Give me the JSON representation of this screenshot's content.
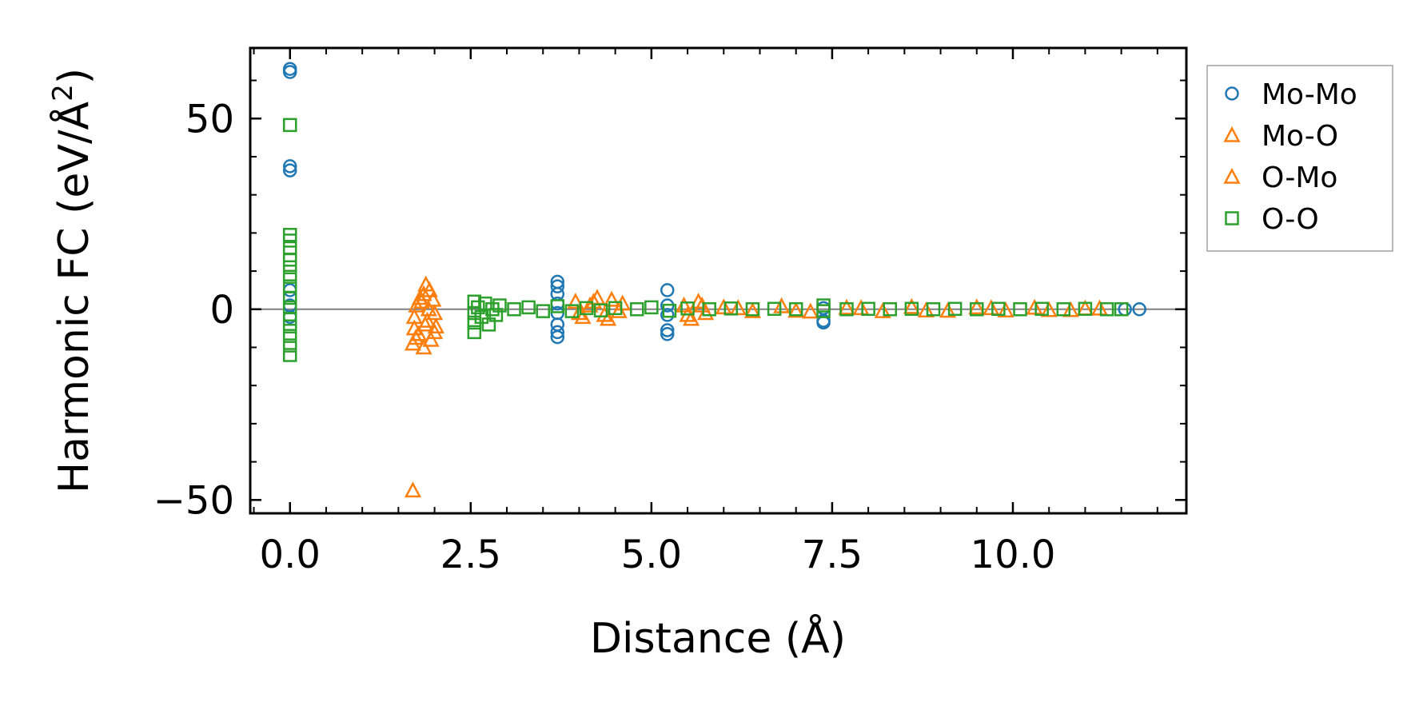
{
  "chart_data": {
    "type": "scatter",
    "xlabel": "Distance (Å)",
    "ylabel": "Harmonic FC (eV/Å²)",
    "ylabel_main": "Harmonic FC (eV/Å",
    "ylabel_sup": "2",
    "ylabel_end": ")",
    "xlim": [
      -0.55,
      12.4
    ],
    "ylim": [
      -53.5,
      68.5
    ],
    "xticks": [
      0.0,
      2.5,
      5.0,
      7.5,
      10.0
    ],
    "xtick_labels": [
      "0.0",
      "2.5",
      "5.0",
      "7.5",
      "10.0"
    ],
    "yticks": [
      -50,
      0,
      50
    ],
    "ytick_labels": [
      "−50",
      "0",
      "50"
    ],
    "zero_line": true,
    "grid": false,
    "legend_position": "outside-right-top",
    "series": [
      {
        "name": "Mo-Mo",
        "marker": "circle",
        "color": "#1f77b4",
        "points": [
          [
            0.0,
            63.0
          ],
          [
            0.0,
            62.2
          ],
          [
            0.0,
            37.5
          ],
          [
            0.0,
            36.4
          ],
          [
            0.0,
            5.0
          ],
          [
            0.0,
            1.0
          ],
          [
            0.0,
            -2.0
          ],
          [
            3.7,
            7.2
          ],
          [
            3.7,
            6.0
          ],
          [
            3.7,
            4.0
          ],
          [
            3.7,
            1.5
          ],
          [
            3.7,
            -1.0
          ],
          [
            3.7,
            -4.0
          ],
          [
            3.7,
            -6.0
          ],
          [
            3.7,
            -7.3
          ],
          [
            5.22,
            5.0
          ],
          [
            5.22,
            1.0
          ],
          [
            5.22,
            -1.5
          ],
          [
            5.22,
            -5.5
          ],
          [
            5.22,
            -6.5
          ],
          [
            7.38,
            -3.0
          ],
          [
            7.38,
            -3.5
          ],
          [
            7.38,
            0.3
          ],
          [
            11.55,
            0.0
          ],
          [
            11.75,
            0.0
          ]
        ]
      },
      {
        "name": "Mo-O",
        "marker": "triangle",
        "color": "#ff7f0e",
        "points": [
          [
            1.7,
            -47.5
          ],
          [
            1.7,
            -9.0
          ],
          [
            1.72,
            -5.0
          ],
          [
            1.72,
            -2.0
          ],
          [
            1.75,
            1.0
          ],
          [
            1.78,
            -6.5
          ],
          [
            1.82,
            2.0
          ],
          [
            1.85,
            -10.0
          ],
          [
            1.85,
            4.0
          ],
          [
            1.88,
            6.5
          ],
          [
            1.9,
            -3.0
          ],
          [
            1.92,
            0.0
          ],
          [
            1.95,
            -8.0
          ],
          [
            1.98,
            2.5
          ],
          [
            2.0,
            -1.0
          ],
          [
            2.02,
            -4.5
          ],
          [
            3.95,
            2.0
          ],
          [
            4.05,
            -2.0
          ],
          [
            4.15,
            1.0
          ],
          [
            4.25,
            3.0
          ],
          [
            4.35,
            -1.5
          ],
          [
            4.45,
            2.5
          ],
          [
            4.55,
            -0.5
          ],
          [
            5.45,
            1.0
          ],
          [
            5.55,
            -2.5
          ],
          [
            5.65,
            2.0
          ],
          [
            5.75,
            -1.0
          ],
          [
            6.0,
            0.5
          ],
          [
            6.4,
            -0.5
          ],
          [
            6.8,
            0.8
          ],
          [
            7.2,
            -0.6
          ],
          [
            7.7,
            0.4
          ],
          [
            8.2,
            -0.5
          ],
          [
            8.6,
            0.6
          ],
          [
            9.1,
            -0.4
          ],
          [
            9.5,
            0.5
          ],
          [
            9.9,
            -0.3
          ],
          [
            10.3,
            0.4
          ],
          [
            10.8,
            -0.2
          ],
          [
            11.2,
            0.2
          ]
        ]
      },
      {
        "name": "O-Mo",
        "marker": "triangle",
        "color": "#ff7f0e",
        "points": [
          [
            1.74,
            -7.5
          ],
          [
            1.8,
            3.0
          ],
          [
            1.87,
            -4.0
          ],
          [
            1.93,
            5.0
          ],
          [
            2.0,
            -6.0
          ],
          [
            4.0,
            -1.0
          ],
          [
            4.2,
            2.0
          ],
          [
            4.4,
            -2.5
          ],
          [
            4.6,
            1.5
          ],
          [
            5.5,
            -1.5
          ],
          [
            5.7,
            1.0
          ],
          [
            6.2,
            0.3
          ],
          [
            7.0,
            -0.4
          ],
          [
            7.9,
            0.3
          ],
          [
            8.8,
            -0.3
          ],
          [
            9.7,
            0.3
          ],
          [
            10.5,
            -0.2
          ],
          [
            11.0,
            0.2
          ]
        ]
      },
      {
        "name": "O-O",
        "marker": "square",
        "color": "#2ca02c",
        "points": [
          [
            0.0,
            48.3
          ],
          [
            0.0,
            19.5
          ],
          [
            0.0,
            18.0
          ],
          [
            0.0,
            16.0
          ],
          [
            0.0,
            13.0
          ],
          [
            0.0,
            11.0
          ],
          [
            0.0,
            8.5
          ],
          [
            0.0,
            6.0
          ],
          [
            0.0,
            3.0
          ],
          [
            0.0,
            0.5
          ],
          [
            0.0,
            -2.5
          ],
          [
            0.0,
            -4.5
          ],
          [
            0.0,
            -7.0
          ],
          [
            0.0,
            -9.5
          ],
          [
            0.0,
            -12.0
          ],
          [
            2.55,
            2.0
          ],
          [
            2.55,
            -1.0
          ],
          [
            2.55,
            -3.5
          ],
          [
            2.55,
            -6.0
          ],
          [
            2.6,
            0.5
          ],
          [
            2.65,
            -2.0
          ],
          [
            2.7,
            1.5
          ],
          [
            2.75,
            -4.0
          ],
          [
            2.8,
            0.0
          ],
          [
            2.85,
            -1.5
          ],
          [
            2.9,
            1.0
          ],
          [
            3.1,
            0.0
          ],
          [
            3.3,
            0.5
          ],
          [
            3.5,
            -0.5
          ],
          [
            3.7,
            0.8
          ],
          [
            3.9,
            -0.5
          ],
          [
            4.1,
            0.3
          ],
          [
            4.3,
            -0.3
          ],
          [
            4.5,
            0.3
          ],
          [
            4.8,
            0.0
          ],
          [
            5.0,
            0.5
          ],
          [
            5.25,
            -0.4
          ],
          [
            5.5,
            0.2
          ],
          [
            5.8,
            0.0
          ],
          [
            6.1,
            0.2
          ],
          [
            6.4,
            0.0
          ],
          [
            6.7,
            0.1
          ],
          [
            7.0,
            0.0
          ],
          [
            7.38,
            1.0
          ],
          [
            7.38,
            -0.5
          ],
          [
            7.7,
            0.0
          ],
          [
            8.0,
            0.1
          ],
          [
            8.3,
            0.0
          ],
          [
            8.6,
            0.1
          ],
          [
            8.9,
            0.0
          ],
          [
            9.2,
            0.1
          ],
          [
            9.5,
            0.0
          ],
          [
            9.8,
            0.1
          ],
          [
            10.1,
            0.0
          ],
          [
            10.4,
            0.1
          ],
          [
            10.7,
            0.0
          ],
          [
            11.0,
            0.1
          ],
          [
            11.3,
            0.0
          ],
          [
            11.5,
            0.0
          ]
        ]
      }
    ]
  }
}
